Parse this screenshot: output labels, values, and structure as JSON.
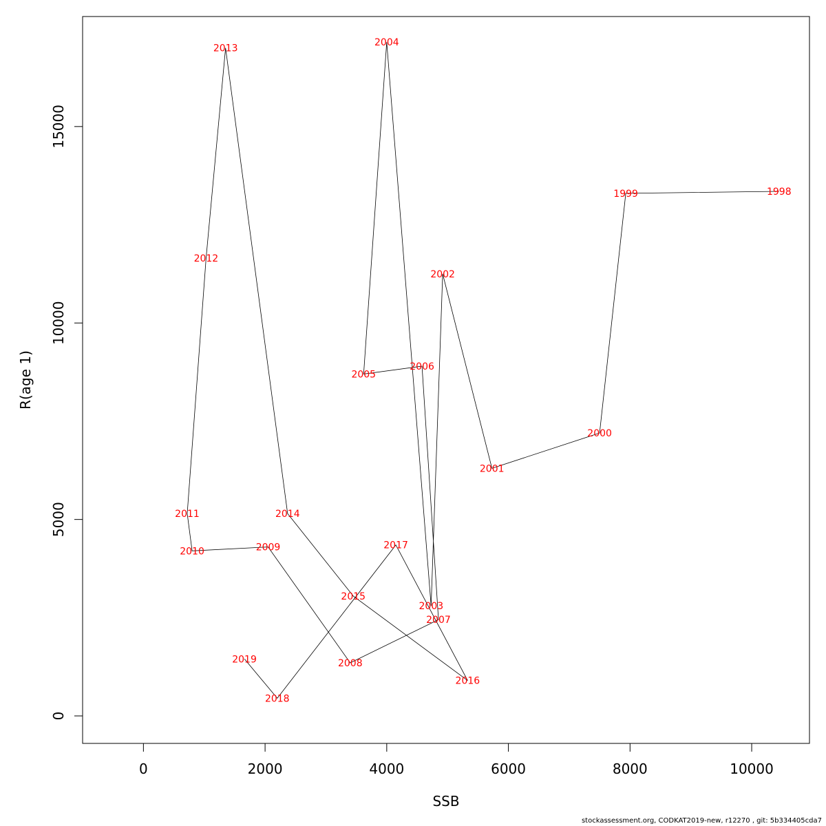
{
  "chart_data": {
    "type": "line",
    "xlabel": "SSB",
    "ylabel": "R(age 1)",
    "xlim": [
      -1000,
      10950
    ],
    "ylim": [
      -700,
      17800
    ],
    "x_ticks": [
      0,
      2000,
      4000,
      6000,
      8000,
      10000
    ],
    "x_tick_labels": [
      "0",
      "2000",
      "4000",
      "6000",
      "8000",
      "10000"
    ],
    "y_ticks": [
      0,
      5000,
      10000,
      15000
    ],
    "y_tick_labels": [
      "0",
      "5000",
      "10000",
      "15000"
    ],
    "line_color": "#000000",
    "label_color": "#ff0000",
    "grid": false,
    "points": [
      {
        "label": "1998",
        "x": 10450,
        "y": 13350
      },
      {
        "label": "1999",
        "x": 7930,
        "y": 13300
      },
      {
        "label": "2000",
        "x": 7500,
        "y": 7200
      },
      {
        "label": "2001",
        "x": 5730,
        "y": 6300
      },
      {
        "label": "2002",
        "x": 4920,
        "y": 11250
      },
      {
        "label": "2003",
        "x": 4730,
        "y": 2800
      },
      {
        "label": "2004",
        "x": 4000,
        "y": 17150
      },
      {
        "label": "2005",
        "x": 3620,
        "y": 8700
      },
      {
        "label": "2006",
        "x": 4580,
        "y": 8900
      },
      {
        "label": "2007",
        "x": 4850,
        "y": 2450
      },
      {
        "label": "2008",
        "x": 3400,
        "y": 1350
      },
      {
        "label": "2009",
        "x": 2050,
        "y": 4300
      },
      {
        "label": "2010",
        "x": 800,
        "y": 4200
      },
      {
        "label": "2011",
        "x": 720,
        "y": 5150
      },
      {
        "label": "2012",
        "x": 1030,
        "y": 11650
      },
      {
        "label": "2013",
        "x": 1350,
        "y": 17000
      },
      {
        "label": "2014",
        "x": 2370,
        "y": 5150
      },
      {
        "label": "2015",
        "x": 3450,
        "y": 3050
      },
      {
        "label": "2016",
        "x": 5330,
        "y": 900
      },
      {
        "label": "2017",
        "x": 4150,
        "y": 4350
      },
      {
        "label": "2018",
        "x": 2200,
        "y": 450
      },
      {
        "label": "2019",
        "x": 1660,
        "y": 1450
      }
    ]
  },
  "footer": {
    "text": "stockassessment.org, CODKAT2019-new, r12270 , git: 5b334405cda7"
  }
}
